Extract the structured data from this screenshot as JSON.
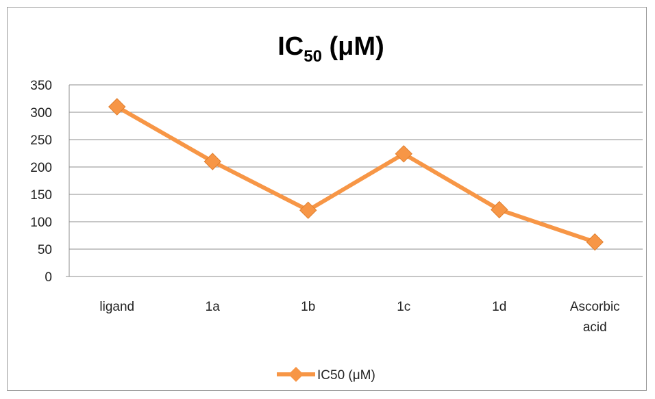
{
  "chart_data": {
    "type": "line",
    "title": {
      "main": "IC",
      "subscript": "50",
      "rest": " (μM)"
    },
    "categories": [
      [
        "ligand"
      ],
      [
        "1a"
      ],
      [
        "1b"
      ],
      [
        "1c"
      ],
      [
        "1d"
      ],
      [
        "Ascorbic",
        "acid"
      ]
    ],
    "series": [
      {
        "name": "IC50 (μM)",
        "values": [
          310,
          210,
          121,
          224,
          122,
          63
        ],
        "color": "#F79646"
      }
    ],
    "ylim": [
      0,
      350
    ],
    "yticks": [
      "0",
      "50",
      "100",
      "150",
      "200",
      "250",
      "300",
      "350"
    ],
    "grid": true,
    "legend_position": "bottom",
    "marker": "diamond"
  }
}
